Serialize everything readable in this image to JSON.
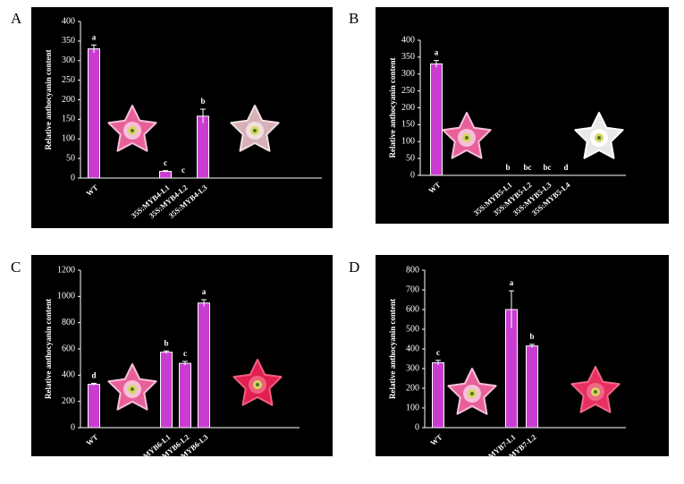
{
  "chart_data": [
    {
      "type": "bar",
      "panel": "A",
      "y_label": "Relative anthocyanin content",
      "categories": [
        "WT",
        "35S:MYB4-L1",
        "35S:MYB4-L2",
        "35S:MYB4-L3"
      ],
      "values": [
        330,
        17,
        0,
        158
      ],
      "errors": [
        10,
        2,
        0,
        18
      ],
      "annotations": [
        "a",
        "c",
        "c",
        "b"
      ],
      "color": "#c83cd0",
      "ylim": [
        0,
        400
      ],
      "yticks": [
        0,
        50,
        100,
        150,
        200,
        250,
        300,
        350,
        400
      ]
    },
    {
      "type": "bar",
      "panel": "B",
      "y_label": "Relative anthocyanin content",
      "categories": [
        "WT",
        "35S:MYB5-L1",
        "35S:MYB5-L2",
        "35S:MYB5-L3",
        "35S:MYB5-L4"
      ],
      "values": [
        330,
        0,
        0,
        0,
        0
      ],
      "errors": [
        10,
        0,
        0,
        0,
        0
      ],
      "annotations": [
        "a",
        "b",
        "bc",
        "bc",
        "d"
      ],
      "color": "#c83cd0",
      "ylim": [
        0,
        400
      ],
      "yticks": [
        0,
        50,
        100,
        150,
        200,
        250,
        300,
        350,
        400
      ]
    },
    {
      "type": "bar",
      "panel": "C",
      "y_label": "Relative anthocyanin content",
      "categories": [
        "WT",
        "35S:MYB6-L1",
        "35S:MYB6-L2",
        "35S:MYB6-L3"
      ],
      "values": [
        330,
        575,
        490,
        950
      ],
      "errors": [
        8,
        10,
        15,
        25
      ],
      "annotations": [
        "d",
        "b",
        "c",
        "a"
      ],
      "color": "#c83cd0",
      "ylim": [
        0,
        1200
      ],
      "yticks": [
        0,
        200,
        400,
        600,
        800,
        1000,
        1200
      ]
    },
    {
      "type": "bar",
      "panel": "D",
      "y_label": "Relative anthocyanin content",
      "categories": [
        "WT",
        "35S:MYB7-L1",
        "35S:MYB7-L2"
      ],
      "values": [
        330,
        600,
        415
      ],
      "errors": [
        12,
        95,
        8
      ],
      "annotations": [
        "c",
        "a",
        "b"
      ],
      "color": "#c83cd0",
      "ylim": [
        0,
        800
      ],
      "yticks": [
        0,
        100,
        200,
        300,
        400,
        500,
        600,
        700,
        800
      ]
    }
  ]
}
